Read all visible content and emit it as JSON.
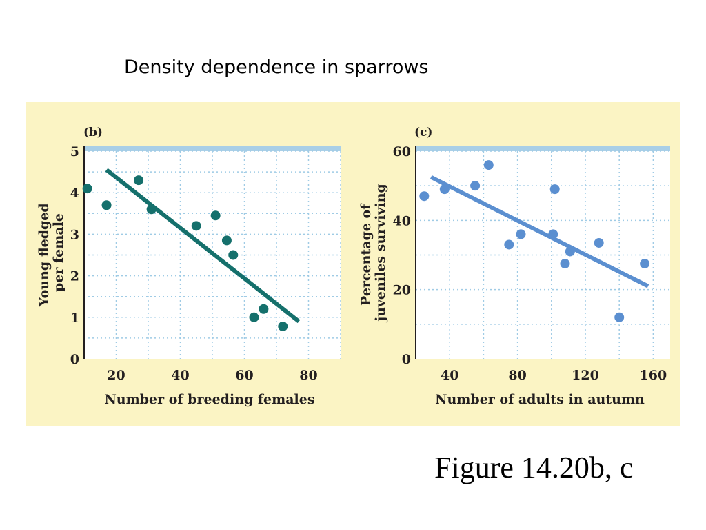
{
  "slide": {
    "title": "Density dependence in sparrows",
    "caption": "Figure 14.20b, c"
  },
  "colors": {
    "figure_background": "#fbf4c4",
    "plot_background": "#ffffff",
    "grid": "#9fcbe5",
    "axis": "#231f20",
    "frame_top": "#a9cfe7"
  },
  "chart_data": [
    {
      "type": "scatter",
      "panel": "(b)",
      "xlabel": "Number of breeding females",
      "ylabel": [
        "Young fledged",
        "per female"
      ],
      "xlim": [
        10,
        90
      ],
      "ylim": [
        0,
        5
      ],
      "xticks": [
        20,
        40,
        60,
        80
      ],
      "yticks": [
        0,
        1,
        2,
        3,
        4,
        5
      ],
      "grid": true,
      "color": "#15706c",
      "points": [
        {
          "x": 11,
          "y": 4.1
        },
        {
          "x": 17,
          "y": 3.7
        },
        {
          "x": 27,
          "y": 4.3
        },
        {
          "x": 31,
          "y": 3.6
        },
        {
          "x": 45,
          "y": 3.2
        },
        {
          "x": 51,
          "y": 3.45
        },
        {
          "x": 54.5,
          "y": 2.85
        },
        {
          "x": 56.5,
          "y": 2.5
        },
        {
          "x": 63,
          "y": 1.0
        },
        {
          "x": 66,
          "y": 1.2
        },
        {
          "x": 72,
          "y": 0.78
        }
      ],
      "trendline": {
        "x": [
          17,
          77
        ],
        "y": [
          4.55,
          0.9
        ]
      }
    },
    {
      "type": "scatter",
      "panel": "(c)",
      "xlabel": "Number of adults in autumn",
      "ylabel": [
        "Percentage of",
        "juveniles surviving"
      ],
      "xlim": [
        20,
        170
      ],
      "ylim": [
        0,
        60
      ],
      "xticks": [
        40,
        80,
        120,
        160
      ],
      "yticks": [
        0,
        20,
        40,
        60
      ],
      "grid": true,
      "color": "#5b8fd0",
      "points": [
        {
          "x": 25,
          "y": 47
        },
        {
          "x": 37,
          "y": 49
        },
        {
          "x": 55,
          "y": 50
        },
        {
          "x": 63,
          "y": 56
        },
        {
          "x": 75,
          "y": 33
        },
        {
          "x": 82,
          "y": 36
        },
        {
          "x": 101,
          "y": 36
        },
        {
          "x": 102,
          "y": 49
        },
        {
          "x": 108,
          "y": 27.5
        },
        {
          "x": 111,
          "y": 31
        },
        {
          "x": 128,
          "y": 33.5
        },
        {
          "x": 140,
          "y": 12
        },
        {
          "x": 155,
          "y": 27.5
        }
      ],
      "trendline": {
        "x": [
          29,
          157
        ],
        "y": [
          52.5,
          21
        ]
      }
    }
  ]
}
